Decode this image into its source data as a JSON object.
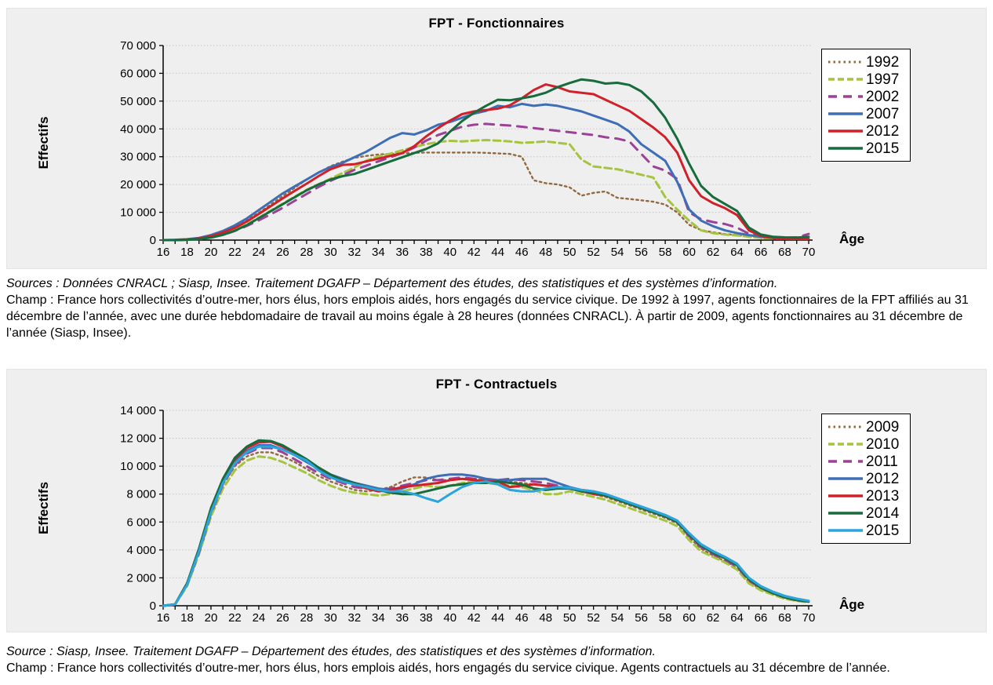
{
  "colors": {
    "panel_bg": "#efefef",
    "grid": "#c6c6c6",
    "axis": "#000000",
    "legend_bg": "#ffffff",
    "legend_border": "#000000"
  },
  "chart_data": [
    {
      "type": "line",
      "title": "FPT - Fonctionnaires",
      "ylabel": "Effectifs",
      "xlabel": "Âge",
      "ylim": [
        0,
        70000
      ],
      "ytick_step": 10000,
      "ytick_labels": [
        "0",
        "10 000",
        "20 000",
        "30 000",
        "40 000",
        "50 000",
        "60 000",
        "70 000"
      ],
      "grid": "horizontal-dotted",
      "legend_position": "right",
      "x": [
        16,
        17,
        18,
        19,
        20,
        21,
        22,
        23,
        24,
        25,
        26,
        27,
        28,
        29,
        30,
        31,
        32,
        33,
        34,
        35,
        36,
        37,
        38,
        39,
        40,
        41,
        42,
        43,
        44,
        45,
        46,
        47,
        48,
        49,
        50,
        51,
        52,
        53,
        54,
        55,
        56,
        57,
        58,
        59,
        60,
        61,
        62,
        63,
        64,
        65,
        66,
        67,
        68,
        69,
        70
      ],
      "series": [
        {
          "name": "1992",
          "color": "#926a42",
          "style": "dotted",
          "values": [
            0,
            0,
            200,
            600,
            1500,
            2900,
            4600,
            7000,
            9800,
            12800,
            15800,
            18800,
            21800,
            24300,
            26600,
            28200,
            29600,
            30300,
            30800,
            31000,
            31200,
            31400,
            31500,
            31500,
            31500,
            31500,
            31500,
            31400,
            31200,
            31000,
            30000,
            21500,
            20500,
            20000,
            19000,
            16000,
            17000,
            17500,
            15200,
            14800,
            14300,
            13800,
            12800,
            10000,
            5500,
            3600,
            2800,
            2200,
            1800,
            1200,
            800,
            500,
            400,
            400,
            500
          ]
        },
        {
          "name": "1997",
          "color": "#a6c440",
          "style": "dashed-short",
          "values": [
            0,
            0,
            150,
            450,
            1100,
            2100,
            3600,
            5600,
            8000,
            10600,
            13100,
            15600,
            18100,
            20100,
            22100,
            24100,
            26100,
            28600,
            30100,
            31100,
            32300,
            33500,
            34500,
            35300,
            35700,
            35500,
            35800,
            36000,
            35800,
            35500,
            35000,
            35200,
            35500,
            35000,
            34500,
            29000,
            26500,
            26000,
            25500,
            24500,
            23500,
            22500,
            15500,
            11000,
            7000,
            3500,
            2500,
            2000,
            1700,
            1200,
            800,
            600,
            500,
            600,
            1600
          ]
        },
        {
          "name": "2002",
          "color": "#9c4198",
          "style": "dashed-long",
          "values": [
            0,
            0,
            100,
            350,
            900,
            1900,
            3300,
            5100,
            7100,
            9300,
            11600,
            14100,
            16600,
            19100,
            21300,
            23300,
            25300,
            26800,
            28300,
            29800,
            31300,
            33300,
            35800,
            37800,
            39300,
            40800,
            41500,
            41800,
            41500,
            41200,
            40800,
            40300,
            39800,
            39300,
            38800,
            38300,
            37800,
            37000,
            36500,
            35500,
            31000,
            26500,
            25000,
            22000,
            10000,
            7500,
            6500,
            5800,
            4500,
            2300,
            1500,
            1000,
            800,
            1000,
            2200
          ]
        },
        {
          "name": "2007",
          "color": "#3e6eb5",
          "style": "solid",
          "values": [
            0,
            100,
            300,
            800,
            1800,
            3300,
            5300,
            7800,
            10800,
            13800,
            16800,
            19300,
            21800,
            24300,
            26300,
            27800,
            29800,
            31800,
            34300,
            36800,
            38500,
            38000,
            39500,
            41500,
            42500,
            44000,
            45500,
            46500,
            48300,
            47800,
            49000,
            48300,
            48800,
            48300,
            47300,
            46300,
            44800,
            43300,
            41800,
            39000,
            34500,
            31500,
            28500,
            21000,
            11000,
            7000,
            5000,
            3500,
            2500,
            1800,
            1200,
            800,
            600,
            500,
            400
          ]
        },
        {
          "name": "2012",
          "color": "#d0212b",
          "style": "solid",
          "values": [
            0,
            0,
            200,
            600,
            1400,
            2700,
            4400,
            6700,
            9400,
            12200,
            15000,
            17700,
            20300,
            23000,
            25500,
            27000,
            27300,
            28300,
            29300,
            30300,
            31300,
            33800,
            37300,
            40300,
            43000,
            45300,
            46300,
            46800,
            47300,
            48500,
            51000,
            54000,
            56000,
            55000,
            53500,
            53000,
            52500,
            50500,
            48500,
            46500,
            43500,
            40500,
            37000,
            31500,
            21500,
            15800,
            13300,
            11500,
            9000,
            3500,
            1500,
            800,
            500,
            400,
            400
          ]
        },
        {
          "name": "2015",
          "color": "#176b3c",
          "style": "solid",
          "values": [
            0,
            0,
            100,
            400,
            900,
            1900,
            3400,
            5400,
            7900,
            10400,
            12900,
            15400,
            17900,
            20000,
            21800,
            23000,
            23800,
            25300,
            26800,
            28300,
            29800,
            31300,
            32800,
            34800,
            39000,
            42800,
            45800,
            48300,
            50500,
            50300,
            51000,
            51800,
            53000,
            55000,
            56500,
            57800,
            57300,
            56300,
            56600,
            55800,
            53500,
            49500,
            44000,
            36500,
            27500,
            19500,
            15500,
            13000,
            10500,
            4500,
            2000,
            1200,
            1000,
            900,
            1200
          ]
        }
      ],
      "notes": {
        "source": "Sources : Données CNRACL ; Siasp, Insee. Traitement DGAFP – Département des études, des statistiques et des systèmes d’information.",
        "champ": "Champ : France hors collectivités d’outre-mer, hors élus, hors emplois aidés, hors engagés du service civique. De 1992 à 1997, agents fonctionnaires de la FPT affiliés au 31 décembre de l’année, avec une durée hebdomadaire de travail au moins égale à 28 heures (données CNRACL). À partir de 2009, agents fonctionnaires au 31 décembre de l’année (Siasp, Insee)."
      }
    },
    {
      "type": "line",
      "title": "FPT - Contractuels",
      "ylabel": "Effectifs",
      "xlabel": "Âge",
      "ylim": [
        0,
        14000
      ],
      "ytick_step": 2000,
      "ytick_labels": [
        "0",
        "2 000",
        "4 000",
        "6 000",
        "8 000",
        "10 000",
        "12 000",
        "14 000"
      ],
      "grid": "horizontal-dotted",
      "legend_position": "right",
      "x": [
        16,
        17,
        18,
        19,
        20,
        21,
        22,
        23,
        24,
        25,
        26,
        27,
        28,
        29,
        30,
        31,
        32,
        33,
        34,
        35,
        36,
        37,
        38,
        39,
        40,
        41,
        42,
        43,
        44,
        45,
        46,
        47,
        48,
        49,
        50,
        51,
        52,
        53,
        54,
        55,
        56,
        57,
        58,
        59,
        60,
        61,
        62,
        63,
        64,
        65,
        66,
        67,
        68,
        69,
        70
      ],
      "series": [
        {
          "name": "2009",
          "color": "#926a42",
          "style": "dotted",
          "values": [
            0,
            100,
            1500,
            3900,
            6700,
            8700,
            10000,
            10700,
            11000,
            11000,
            10700,
            10300,
            9800,
            9300,
            8900,
            8600,
            8300,
            8200,
            8300,
            8500,
            8900,
            9200,
            9200,
            9000,
            9000,
            9100,
            9100,
            9000,
            8900,
            8900,
            8800,
            8700,
            8600,
            8500,
            8400,
            8200,
            8000,
            7800,
            7500,
            7200,
            6900,
            6600,
            6300,
            5900,
            4900,
            4100,
            3600,
            3200,
            2700,
            1700,
            1200,
            900,
            600,
            400,
            300
          ]
        },
        {
          "name": "2010",
          "color": "#a6c440",
          "style": "dashed-short",
          "values": [
            0,
            100,
            1400,
            3700,
            6400,
            8400,
            9700,
            10400,
            10700,
            10600,
            10300,
            9900,
            9500,
            9000,
            8600,
            8300,
            8100,
            8000,
            7900,
            8000,
            8200,
            8400,
            8600,
            8500,
            8600,
            8800,
            8900,
            8800,
            8700,
            8600,
            8500,
            8300,
            8000,
            8000,
            8200,
            8000,
            7800,
            7600,
            7300,
            7000,
            6700,
            6400,
            6100,
            5700,
            4700,
            3900,
            3500,
            3100,
            2600,
            1600,
            1100,
            800,
            500,
            350,
            250
          ]
        },
        {
          "name": "2011",
          "color": "#9c4198",
          "style": "dashed-long",
          "values": [
            0,
            100,
            1500,
            3800,
            6600,
            8700,
            10100,
            10900,
            11300,
            11300,
            11000,
            10500,
            10000,
            9500,
            9100,
            8800,
            8500,
            8400,
            8300,
            8400,
            8600,
            8800,
            9000,
            9000,
            9100,
            9200,
            9100,
            9000,
            9000,
            9100,
            9000,
            8900,
            8800,
            8600,
            8400,
            8200,
            8100,
            7900,
            7600,
            7300,
            7000,
            6700,
            6400,
            6000,
            5000,
            4200,
            3700,
            3300,
            2800,
            1800,
            1300,
            900,
            600,
            450,
            350
          ]
        },
        {
          "name": "2012",
          "color": "#3e6eb5",
          "style": "solid",
          "values": [
            0,
            100,
            1600,
            4000,
            6800,
            8900,
            10300,
            11100,
            11500,
            11500,
            11200,
            10800,
            10300,
            9800,
            9400,
            9100,
            8800,
            8600,
            8400,
            8300,
            8400,
            8700,
            9100,
            9300,
            9400,
            9400,
            9300,
            9100,
            9000,
            9000,
            9100,
            9100,
            9100,
            8800,
            8500,
            8300,
            8200,
            8000,
            7700,
            7400,
            7100,
            6800,
            6500,
            6100,
            5200,
            4400,
            3900,
            3500,
            3000,
            1900,
            1400,
            1000,
            700,
            500,
            350
          ]
        },
        {
          "name": "2013",
          "color": "#d0212b",
          "style": "solid",
          "values": [
            0,
            100,
            1600,
            4000,
            6900,
            9000,
            10500,
            11300,
            11700,
            11750,
            11400,
            10900,
            10400,
            9900,
            9400,
            9000,
            8700,
            8400,
            8200,
            8300,
            8500,
            8600,
            8700,
            8800,
            9000,
            9100,
            9000,
            8900,
            8900,
            8500,
            8600,
            8700,
            8600,
            8500,
            8400,
            8200,
            8000,
            7900,
            7600,
            7300,
            7000,
            6700,
            6400,
            6000,
            5100,
            4300,
            3800,
            3400,
            3000,
            1900,
            1300,
            900,
            600,
            400,
            300
          ]
        },
        {
          "name": "2014",
          "color": "#176b3c",
          "style": "solid",
          "values": [
            0,
            100,
            1600,
            4100,
            7000,
            9100,
            10600,
            11400,
            11850,
            11800,
            11500,
            11000,
            10500,
            9900,
            9400,
            9000,
            8800,
            8500,
            8300,
            8100,
            8000,
            8000,
            8200,
            8400,
            8600,
            8700,
            8800,
            8800,
            8900,
            8800,
            8700,
            8400,
            8300,
            8400,
            8400,
            8200,
            8100,
            7900,
            7600,
            7300,
            7000,
            6700,
            6400,
            6000,
            5100,
            4300,
            3800,
            3400,
            2900,
            1900,
            1300,
            900,
            600,
            400,
            300
          ]
        },
        {
          "name": "2015",
          "color": "#2ca5dd",
          "style": "solid",
          "values": [
            0,
            100,
            1500,
            3900,
            6700,
            8800,
            10200,
            11000,
            11400,
            11400,
            11200,
            10800,
            10400,
            9700,
            9200,
            8900,
            8700,
            8500,
            8300,
            8200,
            8200,
            8000,
            7700,
            7450,
            8000,
            8500,
            8800,
            8900,
            8700,
            8300,
            8200,
            8200,
            8400,
            8500,
            8450,
            8300,
            8200,
            8000,
            7700,
            7400,
            7100,
            6800,
            6500,
            6100,
            5200,
            4400,
            3900,
            3500,
            3000,
            2000,
            1400,
            1000,
            700,
            500,
            350
          ]
        }
      ],
      "notes": {
        "source": "Source : Siasp, Insee. Traitement DGAFP – Département des études, des statistiques et des systèmes d’information.",
        "champ": "Champ : France hors collectivités d’outre-mer, hors élus, hors emplois aidés, hors engagés du service civique. Agents contractuels au 31 décembre de l’année."
      }
    }
  ]
}
